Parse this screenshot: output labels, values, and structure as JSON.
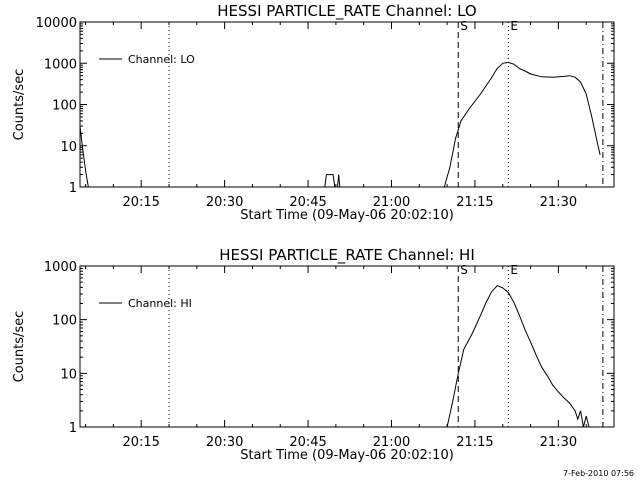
{
  "footer_timestamp": "7-Feb-2010 07:56",
  "chart_data": [
    {
      "type": "line",
      "title": "HESSI PARTICLE_RATE Channel: LO",
      "xlabel": "Start Time (09-May-06 20:02:10)",
      "ylabel": "Counts/sec",
      "y_scale": "log",
      "ylim": [
        1,
        10000
      ],
      "y_ticks": [
        1,
        10,
        100,
        1000,
        10000
      ],
      "y_tick_labels": [
        "1",
        "10",
        "100",
        "1000",
        "10000"
      ],
      "x_range_minutes": [
        "20:04",
        "21:40"
      ],
      "x_ticks": [
        "20:15",
        "20:30",
        "20:45",
        "21:00",
        "21:15",
        "21:30"
      ],
      "legend": {
        "label": "Channel: LO",
        "position": "top-left"
      },
      "markers": [
        {
          "label": "",
          "time": "20:04",
          "style": "dashdot"
        },
        {
          "label": "",
          "time": "20:20",
          "style": "dotted"
        },
        {
          "label": "S",
          "time": "21:12",
          "style": "dashed"
        },
        {
          "label": "E",
          "time": "21:21",
          "style": "dotted"
        },
        {
          "label": "",
          "time": "21:38",
          "style": "dashdot"
        }
      ],
      "series": [
        {
          "name": "Channel: LO",
          "segments": [
            [
              [
                "20:04",
                30
              ],
              [
                "20:04.5",
                8
              ],
              [
                "20:05",
                2.5
              ],
              [
                "20:05.5",
                1
              ]
            ],
            [
              [
                "20:48",
                1
              ],
              [
                "20:48.3",
                2
              ],
              [
                "20:49.5",
                2
              ],
              [
                "20:49.8",
                1
              ]
            ],
            [
              [
                "20:50.3",
                1
              ],
              [
                "20:50.5",
                2
              ],
              [
                "20:50.7",
                1
              ]
            ],
            [
              [
                "21:09.5",
                1
              ],
              [
                "21:10.5",
                3
              ],
              [
                "21:11.5",
                15
              ],
              [
                "21:12.5",
                40
              ],
              [
                "21:14",
                80
              ],
              [
                "21:16",
                180
              ],
              [
                "21:18",
                450
              ],
              [
                "21:19",
                750
              ],
              [
                "21:20",
                1000
              ],
              [
                "21:21",
                1050
              ],
              [
                "21:22",
                950
              ],
              [
                "21:23",
                750
              ],
              [
                "21:24",
                650
              ],
              [
                "21:25",
                550
              ],
              [
                "21:27",
                470
              ],
              [
                "21:29",
                460
              ],
              [
                "21:31",
                480
              ],
              [
                "21:32",
                500
              ],
              [
                "21:33",
                460
              ],
              [
                "21:34",
                350
              ],
              [
                "21:35",
                180
              ],
              [
                "21:36",
                50
              ],
              [
                "21:37",
                12
              ],
              [
                "21:37.5",
                6
              ]
            ]
          ]
        }
      ]
    },
    {
      "type": "line",
      "title": "HESSI PARTICLE_RATE Channel: HI",
      "xlabel": "Start Time (09-May-06 20:02:10)",
      "ylabel": "Counts/sec",
      "y_scale": "log",
      "ylim": [
        1,
        1000
      ],
      "y_ticks": [
        1,
        10,
        100,
        1000
      ],
      "y_tick_labels": [
        "1",
        "10",
        "100",
        "1000"
      ],
      "x_range_minutes": [
        "20:04",
        "21:40"
      ],
      "x_ticks": [
        "20:15",
        "20:30",
        "20:45",
        "21:00",
        "21:15",
        "21:30"
      ],
      "legend": {
        "label": "Channel: HI",
        "position": "top-left"
      },
      "markers": [
        {
          "label": "",
          "time": "20:04",
          "style": "dashdot"
        },
        {
          "label": "",
          "time": "20:20",
          "style": "dotted"
        },
        {
          "label": "S",
          "time": "21:12",
          "style": "dashed"
        },
        {
          "label": "E",
          "time": "21:21",
          "style": "dotted"
        },
        {
          "label": "",
          "time": "21:38",
          "style": "dashdot"
        }
      ],
      "series": [
        {
          "name": "Channel: HI",
          "segments": [
            [
              [
                "21:10",
                1
              ],
              [
                "21:11",
                3
              ],
              [
                "21:12",
                10
              ],
              [
                "21:13",
                28
              ],
              [
                "21:14.5",
                55
              ],
              [
                "21:16",
                120
              ],
              [
                "21:17",
                210
              ],
              [
                "21:18",
                330
              ],
              [
                "21:19",
                430
              ],
              [
                "21:20",
                390
              ],
              [
                "21:21",
                320
              ],
              [
                "21:22",
                210
              ],
              [
                "21:23",
                120
              ],
              [
                "21:24",
                65
              ],
              [
                "21:25",
                38
              ],
              [
                "21:26",
                22
              ],
              [
                "21:27",
                13
              ],
              [
                "21:28",
                9
              ],
              [
                "21:29",
                6
              ],
              [
                "21:30",
                4.5
              ],
              [
                "21:31",
                3.5
              ],
              [
                "21:32",
                2.8
              ],
              [
                "21:33",
                2
              ],
              [
                "21:33.5",
                1.4
              ],
              [
                "21:34",
                2
              ],
              [
                "21:34.5",
                1
              ],
              [
                "21:35",
                1.6
              ],
              [
                "21:35.5",
                1
              ]
            ]
          ]
        }
      ]
    }
  ]
}
